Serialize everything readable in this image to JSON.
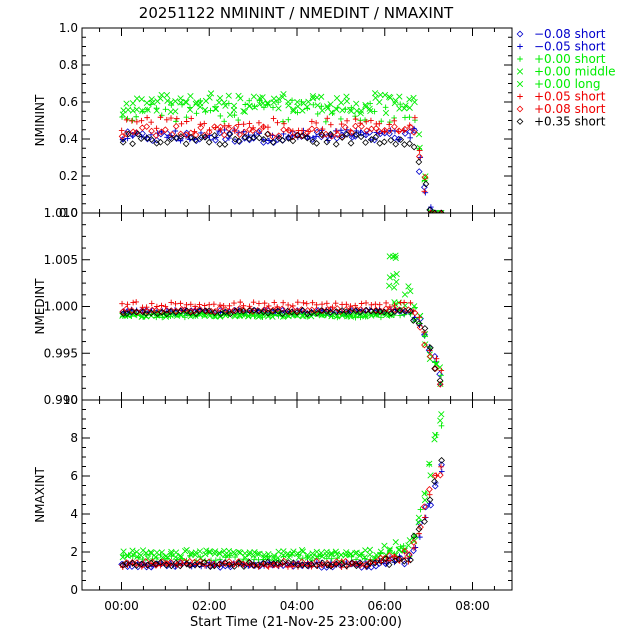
{
  "chart_data": {
    "type": "scatter",
    "title": "20251122 NMININT / NMEDINT / NMAXINT",
    "xlabel": "Start Time (21-Nov-25 23:00:00)",
    "x_ticks": [
      "00:00",
      "02:00",
      "04:00",
      "06:00",
      "08:00"
    ],
    "xlim_hours": [
      -0.9,
      8.9
    ],
    "legend_position": "top-right outside",
    "legend": [
      {
        "label": "−0.08 short",
        "marker": "diamond",
        "color": "#0000cc"
      },
      {
        "label": "−0.05 short",
        "marker": "plus",
        "color": "#0000cc"
      },
      {
        "label": "+0.00 short",
        "marker": "plus",
        "color": "#00ee00"
      },
      {
        "label": "+0.00 middle",
        "marker": "cross",
        "color": "#00ee00"
      },
      {
        "label": "+0.00 long",
        "marker": "cross",
        "color": "#00ee00"
      },
      {
        "label": "+0.05 short",
        "marker": "plus",
        "color": "#ee0000"
      },
      {
        "label": "+0.08 short",
        "marker": "diamond",
        "color": "#ee0000"
      },
      {
        "label": "+0.35 short",
        "marker": "diamond",
        "color": "#000000"
      }
    ],
    "panels": [
      {
        "ylabel": "NMININT",
        "ylim": [
          0,
          1
        ],
        "y_ticks": [
          "0.0",
          "0.2",
          "0.4",
          "0.6",
          "0.8",
          "1.0"
        ],
        "levels": [
          0.41,
          0.42,
          0.55,
          0.6,
          0.58,
          0.48,
          0.44,
          0.4
        ],
        "spread": [
          0.03,
          0.03,
          0.06,
          0.05,
          0.05,
          0.04,
          0.03,
          0.03
        ],
        "end_behaviour": "drops to 0 after 06:40"
      },
      {
        "ylabel": "NMEDINT",
        "ylim": [
          0.99,
          1.01
        ],
        "y_ticks": [
          "0.990",
          "0.995",
          "1.000",
          "1.005",
          "1.010"
        ],
        "levels": [
          0.9994,
          0.9995,
          0.999,
          0.9991,
          0.9991,
          1.0002,
          0.9996,
          0.9994
        ],
        "spread": [
          0.0002,
          0.0002,
          0.0002,
          0.0002,
          0.0002,
          0.0003,
          0.0002,
          0.0002
        ],
        "end_behaviour": "spike to ~1.005 near 06:15, drops toward 0.991 after 06:40"
      },
      {
        "ylabel": "NMAXINT",
        "ylim": [
          0,
          10
        ],
        "y_ticks": [
          "0",
          "2",
          "4",
          "6",
          "8",
          "10"
        ],
        "levels": [
          1.3,
          1.35,
          1.7,
          1.9,
          1.85,
          1.3,
          1.4,
          1.35
        ],
        "spread": [
          0.12,
          0.12,
          0.2,
          0.22,
          0.2,
          0.1,
          0.12,
          0.12
        ],
        "end_behaviour": "rises sharply to ~9 after 06:40"
      }
    ]
  }
}
